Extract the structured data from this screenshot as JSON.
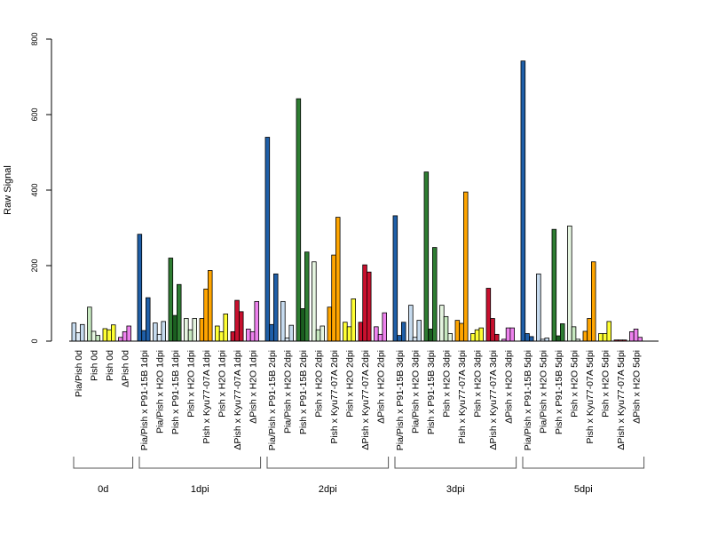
{
  "chart_data": {
    "type": "bar",
    "ylabel": "Raw Signal",
    "ylim": [
      0,
      800
    ],
    "yticks": [
      "0",
      "200",
      "400",
      "600",
      "800"
    ],
    "legend": "none",
    "grid": false,
    "groups": [
      {
        "label": "0d",
        "categories": [
          {
            "label": "Pia/Pish 0d",
            "values": [
              48,
              22,
              44
            ],
            "colors": [
              "#C6DBEF",
              "#DEEBF7",
              "#C6DBEF"
            ]
          },
          {
            "label": "Pish 0d",
            "values": [
              90,
              26,
              15
            ],
            "colors": [
              "#C7E9C0",
              "#E5F5E0",
              "#C7E9C0"
            ]
          },
          {
            "label": "Pish 0d",
            "values": [
              33,
              30,
              43
            ],
            "colors": [
              "#FFFF33",
              "#FFFF33",
              "#FFFF33"
            ]
          },
          {
            "label": "ΔPish 0d",
            "values": [
              10,
              25,
              40
            ],
            "colors": [
              "#EE82EE",
              "#EE82EE",
              "#EE82EE"
            ]
          }
        ]
      },
      {
        "label": "1dpi",
        "categories": [
          {
            "label": "Pia/Pish x P91-15B 1dpi",
            "values": [
              283,
              28,
              115
            ],
            "colors": [
              "#1F5FA8",
              "#1F5FA8",
              "#1F5FA8"
            ]
          },
          {
            "label": "Pia/Pish x H2O 1dpi",
            "values": [
              48,
              18,
              52
            ],
            "colors": [
              "#C6DBEF",
              "#DEEBF7",
              "#C6DBEF"
            ]
          },
          {
            "label": "Pish x P91-15B 1dpi",
            "values": [
              220,
              68,
              150
            ],
            "colors": [
              "#2E7D32",
              "#1B5E20",
              "#2E7D32"
            ]
          },
          {
            "label": "Pish x H2O 1dpi",
            "values": [
              60,
              30,
              60
            ],
            "colors": [
              "#E5F5E0",
              "#C7E9C0",
              "#E5F5E0"
            ]
          },
          {
            "label": "Pish x Kyu77-07A 1dpi",
            "values": [
              60,
              138,
              187
            ],
            "colors": [
              "#FFA500",
              "#FFA500",
              "#FFA500"
            ]
          },
          {
            "label": "Pish x H2O 1dpi",
            "values": [
              40,
              25,
              72
            ],
            "colors": [
              "#FFFF33",
              "#FFFF33",
              "#FFFF33"
            ]
          },
          {
            "label": "ΔPish x Kyu77-07A 1dpi",
            "values": [
              25,
              108,
              78
            ],
            "colors": [
              "#C8102E",
              "#C8102E",
              "#C8102E"
            ]
          },
          {
            "label": "ΔPish x H2O 1dpi",
            "values": [
              32,
              25,
              105
            ],
            "colors": [
              "#EE82EE",
              "#EE82EE",
              "#EE82EE"
            ]
          }
        ]
      },
      {
        "label": "2dpi",
        "categories": [
          {
            "label": "Pia/Pish x P91-15B 2dpi",
            "values": [
              540,
              44,
              178
            ],
            "colors": [
              "#1F5FA8",
              "#1F5FA8",
              "#1F5FA8"
            ]
          },
          {
            "label": "Pia/Pish x H2O 2dpi",
            "values": [
              105,
              8,
              42
            ],
            "colors": [
              "#C6DBEF",
              "#DEEBF7",
              "#C6DBEF"
            ]
          },
          {
            "label": "Pish x P91-15B 2dpi",
            "values": [
              642,
              86,
              236
            ],
            "colors": [
              "#2E7D32",
              "#1B5E20",
              "#2E7D32"
            ]
          },
          {
            "label": "Pish x H2O 2dpi",
            "values": [
              210,
              30,
              40
            ],
            "colors": [
              "#E5F5E0",
              "#C7E9C0",
              "#E5F5E0"
            ]
          },
          {
            "label": "Pish x Kyu77-07A 2dpi",
            "values": [
              90,
              228,
              328
            ],
            "colors": [
              "#FFA500",
              "#FFA500",
              "#FFA500"
            ]
          },
          {
            "label": "Pish x H2O 2dpi",
            "values": [
              50,
              38,
              112
            ],
            "colors": [
              "#FFFF33",
              "#FFFF33",
              "#FFFF33"
            ]
          },
          {
            "label": "ΔPish x Kyu77-07A 2dpi",
            "values": [
              50,
              202,
              183
            ],
            "colors": [
              "#C8102E",
              "#C8102E",
              "#C8102E"
            ]
          },
          {
            "label": "ΔPish x H2O 2dpi",
            "values": [
              38,
              18,
              75
            ],
            "colors": [
              "#EE82EE",
              "#EE82EE",
              "#EE82EE"
            ]
          }
        ]
      },
      {
        "label": "3dpi",
        "categories": [
          {
            "label": "Pia/Pish x P91-15B 3dpi",
            "values": [
              332,
              15,
              50
            ],
            "colors": [
              "#1F5FA8",
              "#1F5FA8",
              "#1F5FA8"
            ]
          },
          {
            "label": "Pia/Pish x H2O 3dpi",
            "values": [
              95,
              10,
              55
            ],
            "colors": [
              "#C6DBEF",
              "#DEEBF7",
              "#C6DBEF"
            ]
          },
          {
            "label": "Pish x P91-15B 3dpi",
            "values": [
              448,
              32,
              248
            ],
            "colors": [
              "#2E7D32",
              "#1B5E20",
              "#2E7D32"
            ]
          },
          {
            "label": "Pish x H2O 3dpi",
            "values": [
              95,
              65,
              20
            ],
            "colors": [
              "#E5F5E0",
              "#C7E9C0",
              "#E5F5E0"
            ]
          },
          {
            "label": "Pish x Kyu77-07A 3dpi",
            "values": [
              55,
              47,
              395
            ],
            "colors": [
              "#FFA500",
              "#FFA500",
              "#FFA500"
            ]
          },
          {
            "label": "Pish x H2O 3dpi",
            "values": [
              20,
              30,
              35
            ],
            "colors": [
              "#FFFF33",
              "#FFFF33",
              "#FFFF33"
            ]
          },
          {
            "label": "ΔPish x Kyu77-07A 3dpi",
            "values": [
              140,
              60,
              18
            ],
            "colors": [
              "#C8102E",
              "#C8102E",
              "#C8102E"
            ]
          },
          {
            "label": "ΔPish x H2O 3dpi",
            "values": [
              5,
              35,
              35
            ],
            "colors": [
              "#EE82EE",
              "#EE82EE",
              "#EE82EE"
            ]
          }
        ]
      },
      {
        "label": "5dpi",
        "categories": [
          {
            "label": "Pia/Pish x P91-15B 5dpi",
            "values": [
              742,
              20,
              12
            ],
            "colors": [
              "#1F5FA8",
              "#1F5FA8",
              "#1F5FA8"
            ]
          },
          {
            "label": "Pia/Pish x H2O 5dpi",
            "values": [
              178,
              5,
              8
            ],
            "colors": [
              "#C6DBEF",
              "#DEEBF7",
              "#C6DBEF"
            ]
          },
          {
            "label": "Pish x P91-15B 5dpi",
            "values": [
              296,
              14,
              46
            ],
            "colors": [
              "#2E7D32",
              "#1B5E20",
              "#2E7D32"
            ]
          },
          {
            "label": "Pish x H2O 5dpi",
            "values": [
              305,
              38,
              5
            ],
            "colors": [
              "#E5F5E0",
              "#C7E9C0",
              "#E5F5E0"
            ]
          },
          {
            "label": "Pish x Kyu77-07A 5dpi",
            "values": [
              26,
              60,
              210
            ],
            "colors": [
              "#FFA500",
              "#FFA500",
              "#FFA500"
            ]
          },
          {
            "label": "Pish x H2O 5dpi",
            "values": [
              20,
              20,
              52
            ],
            "colors": [
              "#FFFF33",
              "#FFFF33",
              "#FFFF33"
            ]
          },
          {
            "label": "ΔPish x Kyu77-07A 5dpi",
            "values": [
              3,
              3,
              3
            ],
            "colors": [
              "#C8102E",
              "#C8102E",
              "#C8102E"
            ]
          },
          {
            "label": "ΔPish x H2O 5dpi",
            "values": [
              25,
              32,
              10
            ],
            "colors": [
              "#EE82EE",
              "#EE82EE",
              "#EE82EE"
            ]
          }
        ]
      }
    ]
  }
}
